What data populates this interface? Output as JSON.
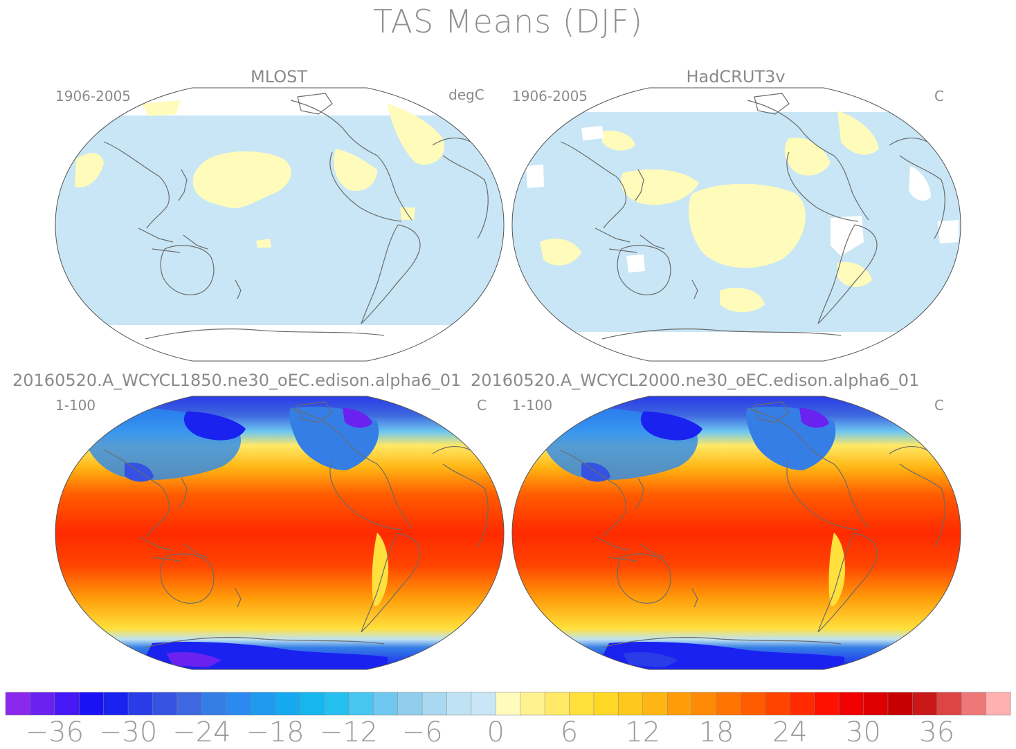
{
  "title": "TAS Means (DJF)",
  "panels": [
    {
      "title": "MLOST",
      "period": "1906-2005",
      "units": "degC"
    },
    {
      "title": "HadCRUT3v",
      "period": "1906-2005",
      "units": "C"
    },
    {
      "title": "20160520.A_WCYCL1850.ne30_oEC.edison.alpha6_01",
      "period": "1-100",
      "units": "C"
    },
    {
      "title": "20160520.A_WCYCL2000.ne30_oEC.edison.alpha6_01",
      "period": "1-100",
      "units": "C"
    }
  ],
  "colorbar": {
    "tick_labels": [
      "−36",
      "−30",
      "−24",
      "−18",
      "−12",
      "−6",
      "0",
      "6",
      "12",
      "18",
      "24",
      "30",
      "36"
    ],
    "colors": [
      "#8a28ee",
      "#6a22f0",
      "#4518f5",
      "#1a12f5",
      "#1a22ef",
      "#2a3be8",
      "#3652e2",
      "#3e68df",
      "#357ee6",
      "#2a8af0",
      "#1e9aef",
      "#17a9f0",
      "#16b6ef",
      "#24c0f0",
      "#48c6f2",
      "#6ec8ef",
      "#92cdee",
      "#aad8f0",
      "#bfe3f3",
      "#c8e6f5",
      "#fffbbb",
      "#fff38f",
      "#ffe966",
      "#ffe03c",
      "#ffd827",
      "#ffc81c",
      "#ffb614",
      "#ff9d09",
      "#ff8a05",
      "#ff7400",
      "#ff5c00",
      "#ff4400",
      "#ff2a00",
      "#ff1100",
      "#f00000",
      "#dc0000",
      "#c60000",
      "#c81818",
      "#dd4444",
      "#ee7777",
      "#ffb0b0"
    ]
  }
}
